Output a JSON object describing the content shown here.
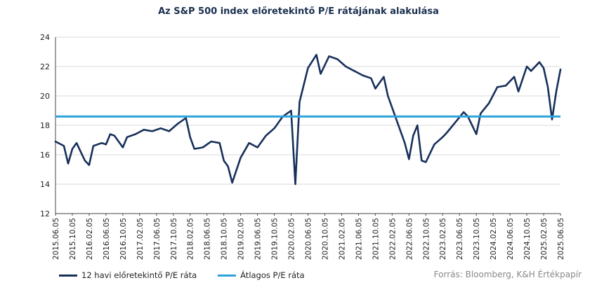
{
  "chart_data": {
    "type": "line",
    "title": "Az S&P 500 index előretekintő P/E rátájának alakulása",
    "ylim": [
      12,
      24
    ],
    "yticks": [
      "12",
      "14",
      "16",
      "18",
      "20",
      "22",
      "24"
    ],
    "grid": "horizontal",
    "legend_placement": "bottom-left",
    "x_tick_labels": [
      "2015.06.05",
      "2015.10.05",
      "2016.02.05",
      "2016.06.05",
      "2016.10.05",
      "2017.02.05",
      "2017.06.05",
      "2017.10.05",
      "2018.02.05",
      "2018.06.05",
      "2018.10.05",
      "2019.02.05",
      "2019.06.05",
      "2019.10.05",
      "2020.02.05",
      "2020.06.05",
      "2020.10.05",
      "2021.02.05",
      "2021.06.05",
      "2021.10.05",
      "2022.02.05",
      "2022.06.05",
      "2022.10.05",
      "2023.02.05",
      "2023.06.05",
      "2023.10.05",
      "2024.02.05",
      "2024.06.05",
      "2024.10.05",
      "2025.02.05",
      "2025.06.05"
    ],
    "series": [
      {
        "name": "12 havi előretekintő P/E ráta",
        "color": "#17305a",
        "x": [
          "2015.06",
          "2015.08",
          "2015.09",
          "2015.10",
          "2015.11",
          "2016.01",
          "2016.02",
          "2016.03",
          "2016.05",
          "2016.06",
          "2016.07",
          "2016.08",
          "2016.10",
          "2016.11",
          "2017.01",
          "2017.03",
          "2017.05",
          "2017.07",
          "2017.09",
          "2017.11",
          "2018.01",
          "2018.02",
          "2018.03",
          "2018.05",
          "2018.07",
          "2018.09",
          "2018.10",
          "2018.11",
          "2018.12",
          "2019.02",
          "2019.04",
          "2019.06",
          "2019.08",
          "2019.10",
          "2019.12",
          "2020.02",
          "2020.03",
          "2020.04",
          "2020.06",
          "2020.08",
          "2020.09",
          "2020.11",
          "2021.01",
          "2021.03",
          "2021.05",
          "2021.07",
          "2021.09",
          "2021.10",
          "2021.12",
          "2022.01",
          "2022.03",
          "2022.05",
          "2022.06",
          "2022.07",
          "2022.08",
          "2022.09",
          "2022.10",
          "2022.12",
          "2023.02",
          "2023.03",
          "2023.05",
          "2023.07",
          "2023.08",
          "2023.10",
          "2023.11",
          "2024.01",
          "2024.03",
          "2024.05",
          "2024.07",
          "2024.08",
          "2024.10",
          "2024.11",
          "2025.01",
          "2025.02",
          "2025.03",
          "2025.04",
          "2025.05",
          "2025.06"
        ],
        "y": [
          16.9,
          16.6,
          15.4,
          16.4,
          16.8,
          15.6,
          15.3,
          16.6,
          16.8,
          16.7,
          17.4,
          17.3,
          16.5,
          17.2,
          17.4,
          17.7,
          17.6,
          17.8,
          17.6,
          18.1,
          18.5,
          17.2,
          16.4,
          16.5,
          16.9,
          16.8,
          15.6,
          15.2,
          14.1,
          15.8,
          16.8,
          16.5,
          17.3,
          17.8,
          18.6,
          19.0,
          14.0,
          19.6,
          21.9,
          22.8,
          21.5,
          22.7,
          22.5,
          22.0,
          21.7,
          21.4,
          21.2,
          20.5,
          21.3,
          20.0,
          18.4,
          16.8,
          15.7,
          17.3,
          18.0,
          15.6,
          15.5,
          16.7,
          17.2,
          17.5,
          18.2,
          18.9,
          18.6,
          17.4,
          18.8,
          19.5,
          20.6,
          20.7,
          21.3,
          20.3,
          22.0,
          21.7,
          22.3,
          21.9,
          20.6,
          18.4,
          20.3,
          21.8
        ]
      },
      {
        "name": "Átlagos P/E ráta",
        "color": "#2ea3d9",
        "value": 18.6
      }
    ]
  },
  "source": "Forrás: Bloomberg, K&H Értékpapír"
}
